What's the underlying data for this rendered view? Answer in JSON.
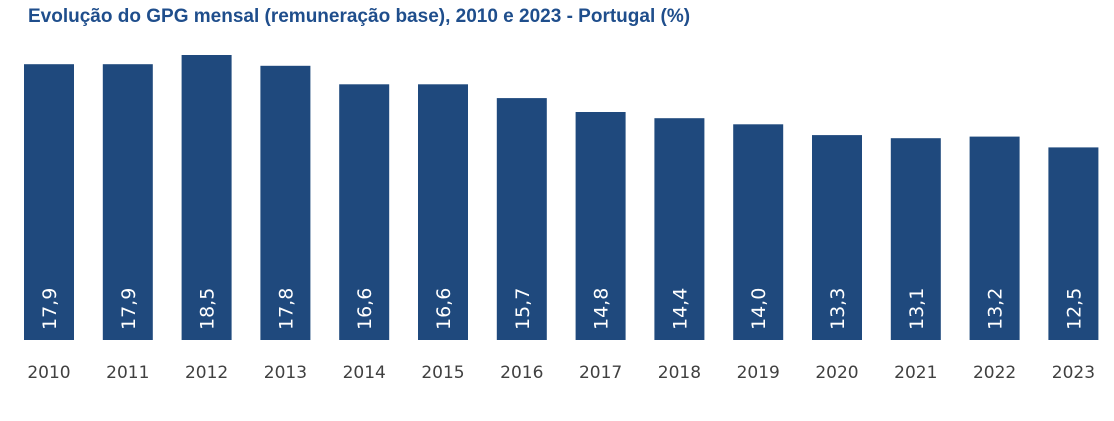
{
  "title": "Evolução do GPG mensal (remuneração base), 2010 e 2023 - Portugal (%)",
  "colors": {
    "bar": "#1f497d",
    "title": "#1f4e8c",
    "bar_label": "#ffffff",
    "tick_label": "#404040"
  },
  "chart_data": {
    "type": "bar",
    "title": "Evolução do GPG mensal (remuneração base), 2010 e 2023 - Portugal (%)",
    "categories": [
      "2010",
      "2011",
      "2012",
      "2013",
      "2014",
      "2015",
      "2016",
      "2017",
      "2018",
      "2019",
      "2020",
      "2021",
      "2022",
      "2023"
    ],
    "values": [
      17.9,
      17.9,
      18.5,
      17.8,
      16.6,
      16.6,
      15.7,
      14.8,
      14.4,
      14.0,
      13.3,
      13.1,
      13.2,
      12.5
    ],
    "data_labels": [
      "17,9",
      "17,9",
      "18,5",
      "17,8",
      "16,6",
      "16,6",
      "15,7",
      "14,8",
      "14,4",
      "14,0",
      "13,3",
      "13,1",
      "13,2",
      "12,5"
    ],
    "xlabel": "",
    "ylabel": "",
    "ylim": [
      0,
      18.5
    ],
    "grid": false,
    "legend": "none"
  }
}
